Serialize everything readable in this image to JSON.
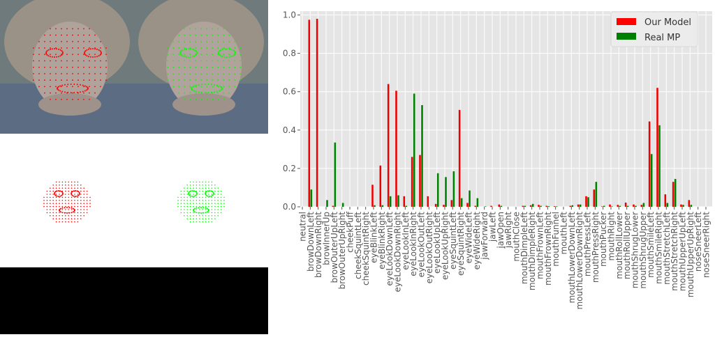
{
  "colors": {
    "our_model": "#ee0000",
    "real_mp": "#008000",
    "mesh_red": "#ff0000",
    "mesh_green": "#00ff00",
    "plot_bg": "#e5e5e5",
    "grid": "#ffffff",
    "tick_text": "#555555"
  },
  "images": {
    "face_photo_1": "face-photo-with-red-landmarks",
    "face_photo_2": "face-photo-with-green-landmarks",
    "mesh_1": "red-face-mesh",
    "mesh_2": "green-face-mesh",
    "black_panel": "black-empty-panel"
  },
  "chart_data": {
    "type": "bar",
    "title": "",
    "xlabel": "",
    "ylabel": "",
    "ylim": [
      0,
      1.02
    ],
    "yticks": [
      "0.0",
      "0.2",
      "0.4",
      "0.6",
      "0.8",
      "1.0"
    ],
    "grid": true,
    "legend_position": "top-right",
    "categories": [
      "neutral",
      "browDownLeft",
      "browDownRight",
      "browInnerUp",
      "browOuterUpLeft",
      "browOuterUpRight",
      "cheekPuff",
      "cheekSquintLeft",
      "cheekSquintRight",
      "eyeBlinkLeft",
      "eyeBlinkRight",
      "eyeLookDownLeft",
      "eyeLookDownRight",
      "eyeLookInLeft",
      "eyeLookInRight",
      "eyeLookOutLeft",
      "eyeLookOutRight",
      "eyeLookUpLeft",
      "eyeLookUpRight",
      "eyeSquintLeft",
      "eyeSquintRight",
      "eyeWideLeft",
      "eyeWideRight",
      "jawForward",
      "jawLeft",
      "jawOpen",
      "jawRight",
      "mouthClose",
      "mouthDimpleLeft",
      "mouthDimpleRight",
      "mouthFrownLeft",
      "mouthFrownRight",
      "mouthFunnel",
      "mouthLeft",
      "mouthLowerDownLeft",
      "mouthLowerDownRight",
      "mouthPressLeft",
      "mouthPressRight",
      "mouthPucker",
      "mouthRight",
      "mouthRollLower",
      "mouthRollUpper",
      "mouthShrugLower",
      "mouthShrugUpper",
      "mouthSmileLeft",
      "mouthSmileRight",
      "mouthStretchLeft",
      "mouthStretchRight",
      "mouthUpperUpLeft",
      "mouthUpperUpRight",
      "noseSneerLeft",
      "noseSneerRight"
    ],
    "series": [
      {
        "name": "Our Model",
        "values": [
          0.0,
          0.975,
          0.98,
          0.0,
          0.005,
          0.0,
          0.0,
          0.0,
          0.0,
          0.115,
          0.215,
          0.64,
          0.605,
          0.055,
          0.26,
          0.27,
          0.055,
          0.015,
          0.01,
          0.035,
          0.505,
          0.02,
          0.005,
          0.0,
          0.005,
          0.012,
          0.0,
          0.0,
          0.005,
          0.008,
          0.01,
          0.005,
          0.003,
          0.0,
          0.005,
          0.012,
          0.055,
          0.09,
          0.002,
          0.012,
          0.01,
          0.022,
          0.012,
          0.01,
          0.445,
          0.62,
          0.065,
          0.13,
          0.012,
          0.035,
          0.0,
          0.0
        ]
      },
      {
        "name": "Real MP",
        "values": [
          0.0,
          0.09,
          0.0,
          0.035,
          0.335,
          0.02,
          0.0,
          0.0,
          0.0,
          0.008,
          0.008,
          0.055,
          0.06,
          0.005,
          0.59,
          0.53,
          0.0,
          0.175,
          0.155,
          0.185,
          0.045,
          0.085,
          0.045,
          0.002,
          0.0,
          0.005,
          0.0,
          0.0,
          0.005,
          0.015,
          0.005,
          0.003,
          0.002,
          0.0,
          0.008,
          0.012,
          0.05,
          0.13,
          0.005,
          0.002,
          0.005,
          0.005,
          0.005,
          0.02,
          0.275,
          0.425,
          0.02,
          0.145,
          0.01,
          0.01,
          0.0,
          0.0
        ]
      }
    ]
  }
}
